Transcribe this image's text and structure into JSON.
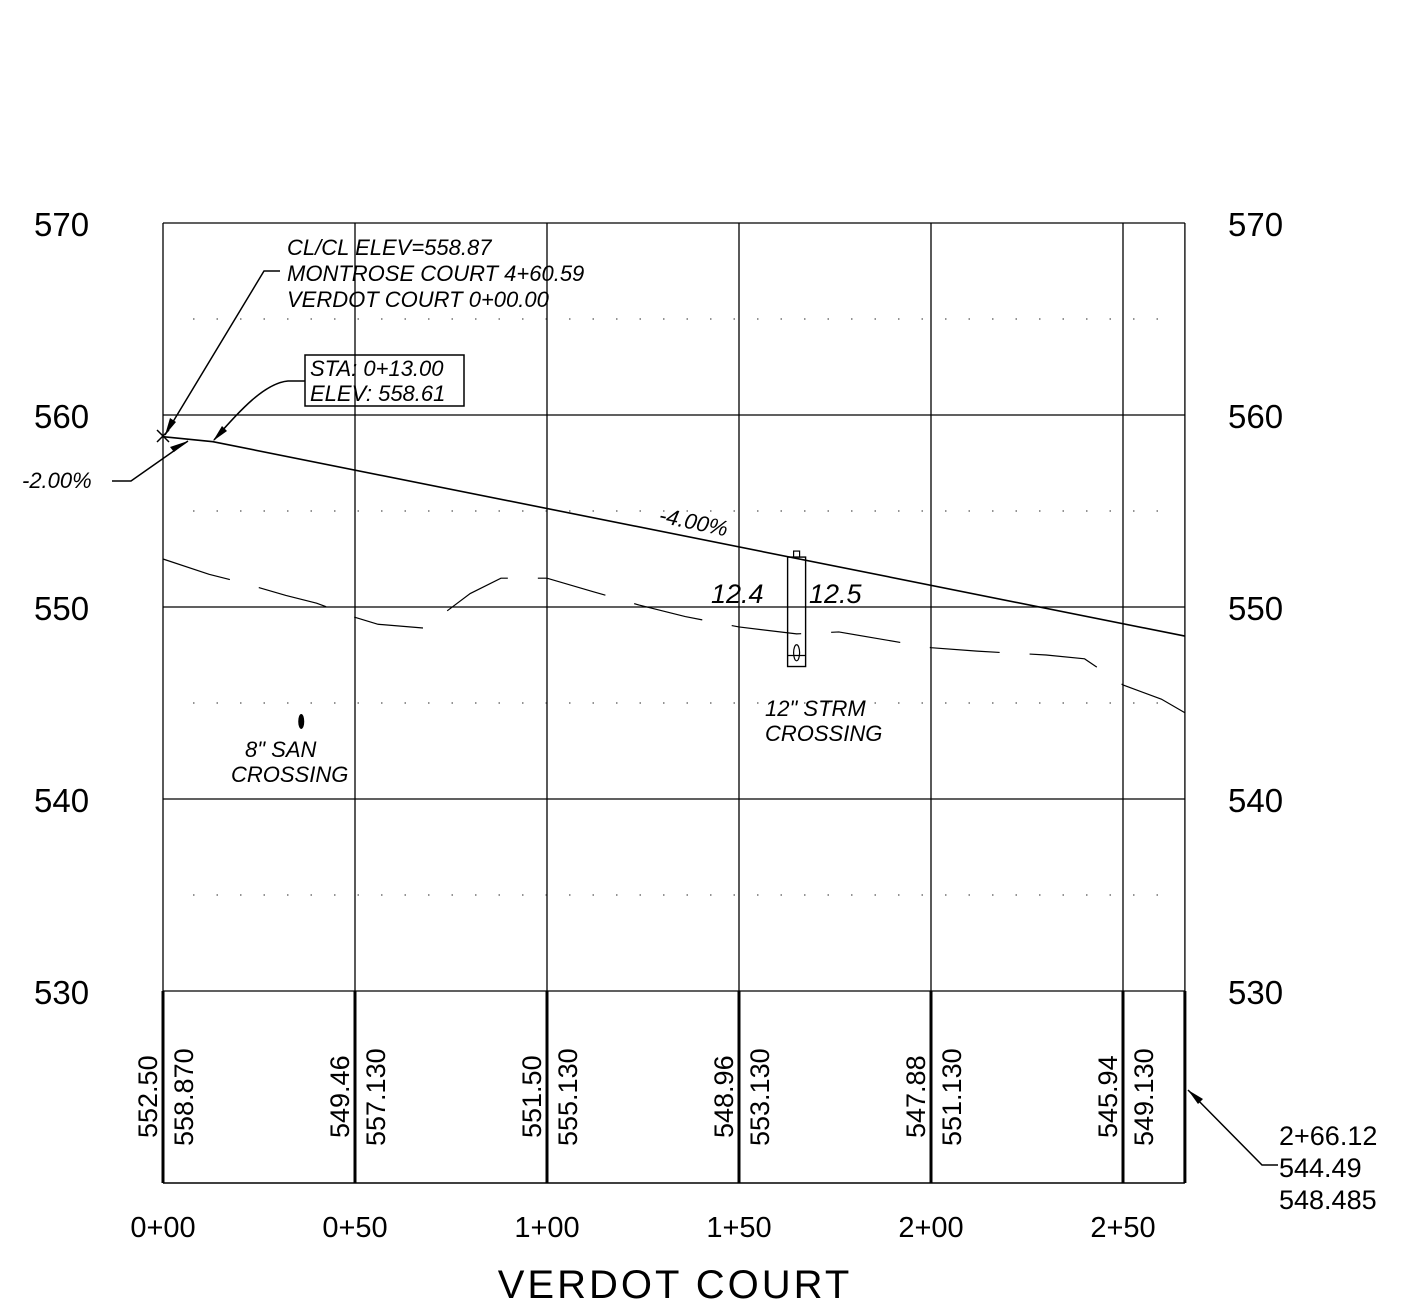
{
  "title": "VERDOT COURT",
  "elevations": {
    "labels": [
      "570",
      "560",
      "550",
      "540",
      "530"
    ],
    "values": [
      570,
      560,
      550,
      540,
      530
    ],
    "range": [
      530,
      570
    ]
  },
  "stations": {
    "labels": [
      "0+00",
      "0+50",
      "1+00",
      "1+50",
      "2+00",
      "2+50"
    ],
    "values": [
      0,
      50,
      100,
      150,
      200,
      250
    ],
    "end_station": 266.12
  },
  "elevation_table": [
    {
      "existing": "552.50",
      "proposed": "558.870"
    },
    {
      "existing": "549.46",
      "proposed": "557.130"
    },
    {
      "existing": "551.50",
      "proposed": "555.130"
    },
    {
      "existing": "548.96",
      "proposed": "553.130"
    },
    {
      "existing": "547.88",
      "proposed": "551.130"
    },
    {
      "existing": "545.94",
      "proposed": "549.130"
    }
  ],
  "end_callout": {
    "station": "2+66.12",
    "existing": "544.49",
    "proposed": "548.485"
  },
  "annotations": {
    "clcl_line1": "CL/CL ELEV=558.87",
    "clcl_line2": "MONTROSE COURT 4+60.59",
    "clcl_line3": "VERDOT COURT 0+00.00",
    "sta_line1": "STA: 0+13.00",
    "sta_line2": "ELEV: 558.61",
    "grade_start": "-2.00%",
    "grade_main": "-4.00%",
    "cover_left": "12.4",
    "cover_right": "12.5",
    "storm_line1": "12\" STRM",
    "storm_line2": "CROSSING",
    "san_line1": "8\" SAN",
    "san_line2": "CROSSING"
  },
  "profile": {
    "proposed_grade": [
      [
        0,
        558.87
      ],
      [
        13,
        558.61
      ],
      [
        266.12,
        548.485
      ]
    ],
    "existing_ground_dashed": [
      [
        0,
        552.5
      ],
      [
        12,
        551.7
      ],
      [
        20,
        551.3
      ],
      [
        32,
        550.6
      ],
      [
        40,
        550.2
      ],
      [
        50,
        549.46
      ],
      [
        56,
        549.1
      ],
      [
        68,
        548.9
      ],
      [
        80,
        550.7
      ],
      [
        88,
        551.5
      ],
      [
        100,
        551.5
      ],
      [
        112,
        550.8
      ],
      [
        124,
        550.1
      ],
      [
        136,
        549.5
      ],
      [
        150,
        548.96
      ],
      [
        165,
        548.6
      ],
      [
        176,
        548.7
      ],
      [
        200,
        547.88
      ],
      [
        212,
        547.7
      ],
      [
        230,
        547.5
      ],
      [
        240,
        547.3
      ],
      [
        250,
        545.94
      ],
      [
        260,
        545.2
      ],
      [
        266.12,
        544.49
      ]
    ],
    "storm_crossing": {
      "station": 165,
      "top": 552.6,
      "bottom": 546.9,
      "pipe_elev": 547.2
    },
    "san_crossing": {
      "station": 36,
      "elev": 544.3
    }
  },
  "colors": {
    "line": "#000000",
    "background": "#ffffff"
  }
}
